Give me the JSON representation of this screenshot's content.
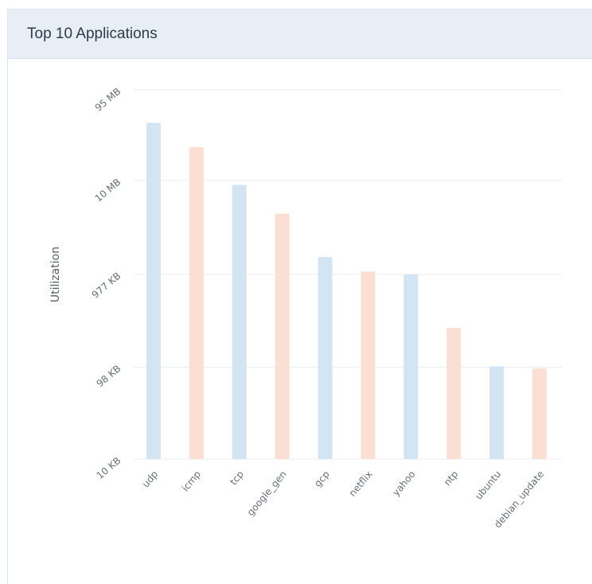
{
  "panel": {
    "title": "Top 10 Applications"
  },
  "chart_data": {
    "type": "bar",
    "title": "Top 10 Applications",
    "xlabel": "",
    "ylabel": "Utilization",
    "yscale": "log",
    "y_ticks": [
      {
        "label": "10 KB",
        "value": 10
      },
      {
        "label": "98 KB",
        "value": 98
      },
      {
        "label": "977 KB",
        "value": 977
      },
      {
        "label": "10 MB",
        "value": 10000
      },
      {
        "label": "95 MB",
        "value": 95000
      }
    ],
    "ylim_kb": [
      10,
      95000
    ],
    "grid": true,
    "legend": "none",
    "categories": [
      "udp",
      "icmp",
      "tcp",
      "google_gen",
      "gcp",
      "netflix",
      "yahoo",
      "ntp",
      "ubuntu",
      "debian_update"
    ],
    "values_kb": [
      42000,
      23000,
      9000,
      4400,
      1500,
      1050,
      980,
      260,
      100,
      95
    ],
    "bar_colors": [
      "#d3e4f3",
      "#fbdfd2"
    ]
  }
}
